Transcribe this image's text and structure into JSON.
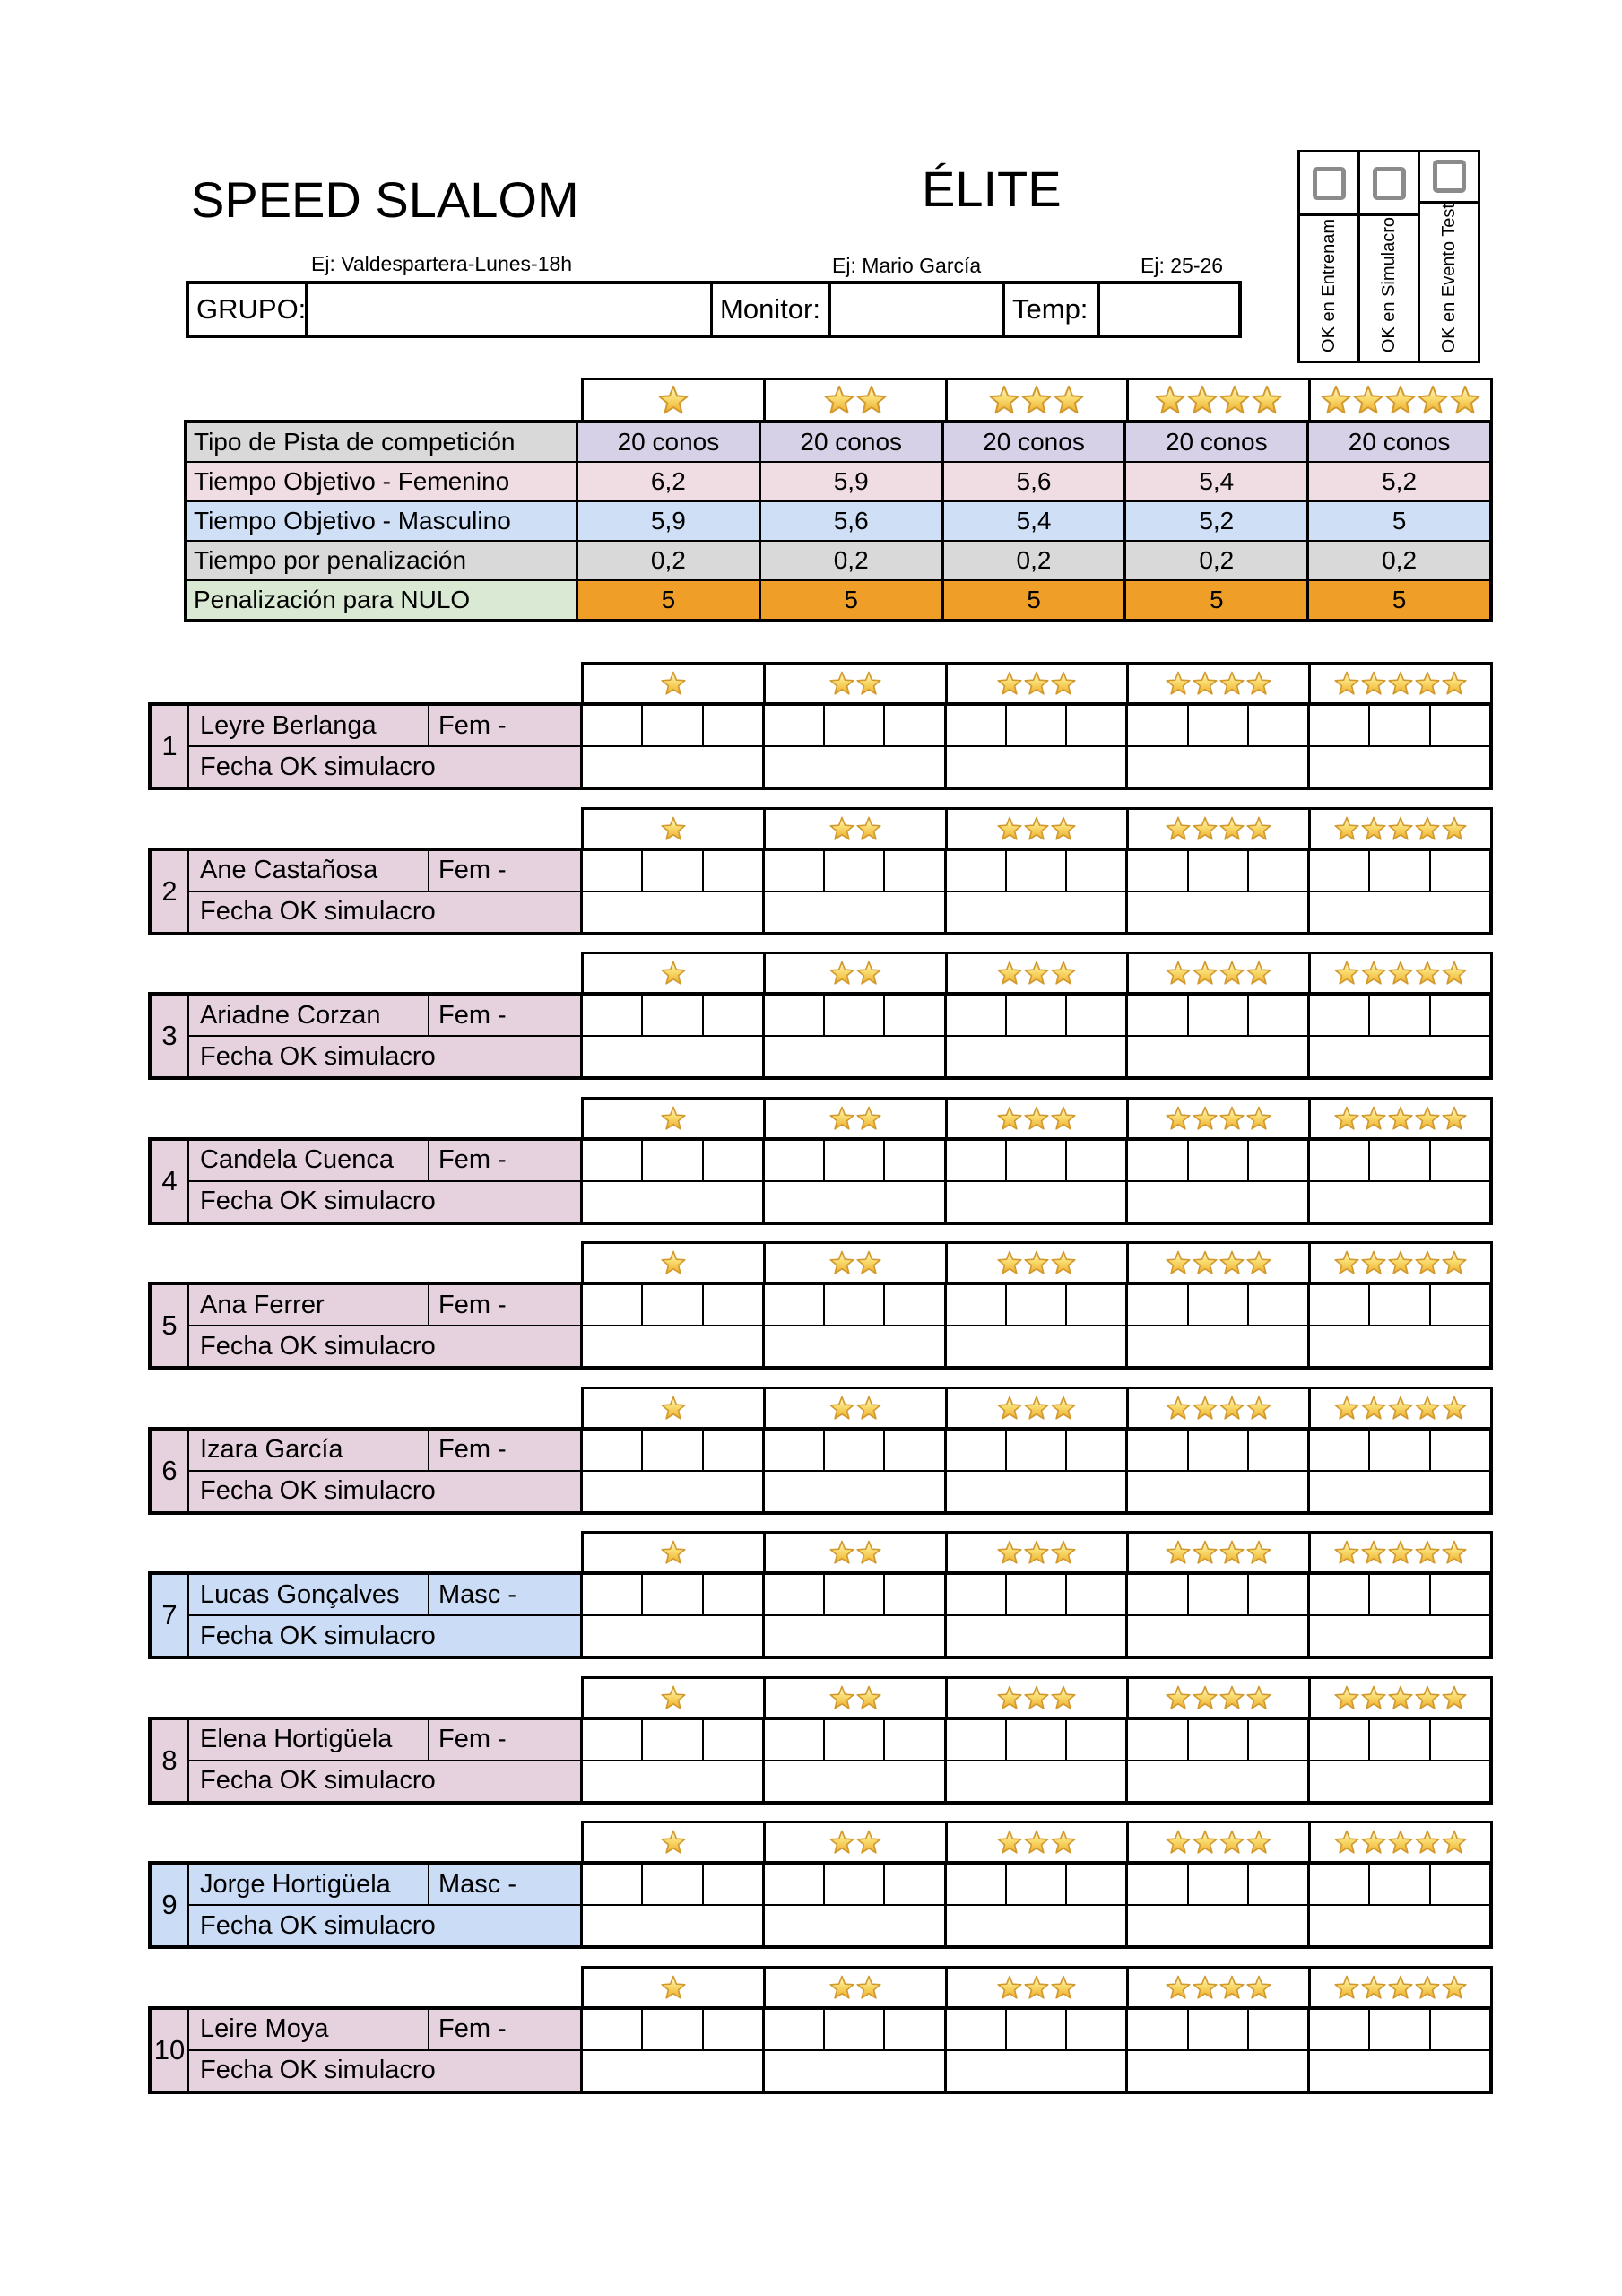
{
  "page": {
    "title_left": "SPEED SLALOM",
    "title_right": "ÉLITE"
  },
  "header": {
    "grupo_hint": "Ej: Valdespartera-Lunes-18h",
    "monitor_hint": "Ej: Mario García",
    "temp_hint": "Ej: 25-26",
    "grupo_label": "GRUPO:",
    "monitor_label": "Monitor:",
    "temp_label": "Temp:",
    "grupo_value": "",
    "monitor_value": "",
    "temp_value": ""
  },
  "ok_checks": [
    {
      "label": "OK en Entrenam",
      "checked": false
    },
    {
      "label": "OK en Simulacro",
      "checked": false
    },
    {
      "label": "OK en Evento Test",
      "checked": false
    }
  ],
  "stars": {
    "levels": [
      1,
      2,
      3,
      4,
      5
    ]
  },
  "params": {
    "rows": [
      {
        "label": "Tipo de Pista de competición",
        "values": [
          "20 conos",
          "20 conos",
          "20 conos",
          "20 conos",
          "20 conos"
        ],
        "label_bg": "#D9D9D9",
        "value_bg": "#D7D1E8"
      },
      {
        "label": "Tiempo Objetivo - Femenino",
        "values": [
          "6,2",
          "5,9",
          "5,6",
          "5,4",
          "5,2"
        ],
        "label_bg": "#F0DDE3",
        "value_bg": "#F0DDE3"
      },
      {
        "label": "Tiempo Objetivo - Masculino",
        "values": [
          "5,9",
          "5,6",
          "5,4",
          "5,2",
          "5"
        ],
        "label_bg": "#CEDFF6",
        "value_bg": "#CEDFF6"
      },
      {
        "label": "Tiempo por penalización",
        "values": [
          "0,2",
          "0,2",
          "0,2",
          "0,2",
          "0,2"
        ],
        "label_bg": "#D9D9D9",
        "value_bg": "#D9D9D9"
      },
      {
        "label": "Penalización para NULO",
        "values": [
          "5",
          "5",
          "5",
          "5",
          "5"
        ],
        "label_bg": "#DAE9D4",
        "value_bg": "#EF9F28"
      }
    ]
  },
  "athletes": {
    "fecha_label": "Fecha OK simulacro",
    "attempts_per_level": 3,
    "list": [
      {
        "num": "1",
        "name": "Leyre Berlanga",
        "gender": "Fem -",
        "sex": "F"
      },
      {
        "num": "2",
        "name": "Ane Castañosa",
        "gender": "Fem -",
        "sex": "F"
      },
      {
        "num": "3",
        "name": "Ariadne Corzan",
        "gender": "Fem -",
        "sex": "F"
      },
      {
        "num": "4",
        "name": "Candela Cuenca",
        "gender": "Fem -",
        "sex": "F"
      },
      {
        "num": "5",
        "name": "Ana Ferrer",
        "gender": "Fem -",
        "sex": "F"
      },
      {
        "num": "6",
        "name": "Izara García",
        "gender": "Fem -",
        "sex": "F"
      },
      {
        "num": "7",
        "name": "Lucas Gonçalves",
        "gender": "Masc -",
        "sex": "M"
      },
      {
        "num": "8",
        "name": "Elena Hortigüela",
        "gender": "Fem -",
        "sex": "F"
      },
      {
        "num": "9",
        "name": "Jorge Hortigüela",
        "gender": "Masc -",
        "sex": "M"
      },
      {
        "num": "10",
        "name": "Leire Moya",
        "gender": "Fem -",
        "sex": "F"
      }
    ]
  },
  "colors": {
    "female_bg": "#E6D2DE",
    "male_bg": "#CBDCF7",
    "nulo_orange": "#EF9F28",
    "star_fill_top": "#FEF6CC",
    "star_fill_mid": "#F9DC70",
    "star_fill_bottom": "#EEAD2C",
    "star_stroke": "#D2992F",
    "checkbox_border": "#8B8B8B"
  }
}
